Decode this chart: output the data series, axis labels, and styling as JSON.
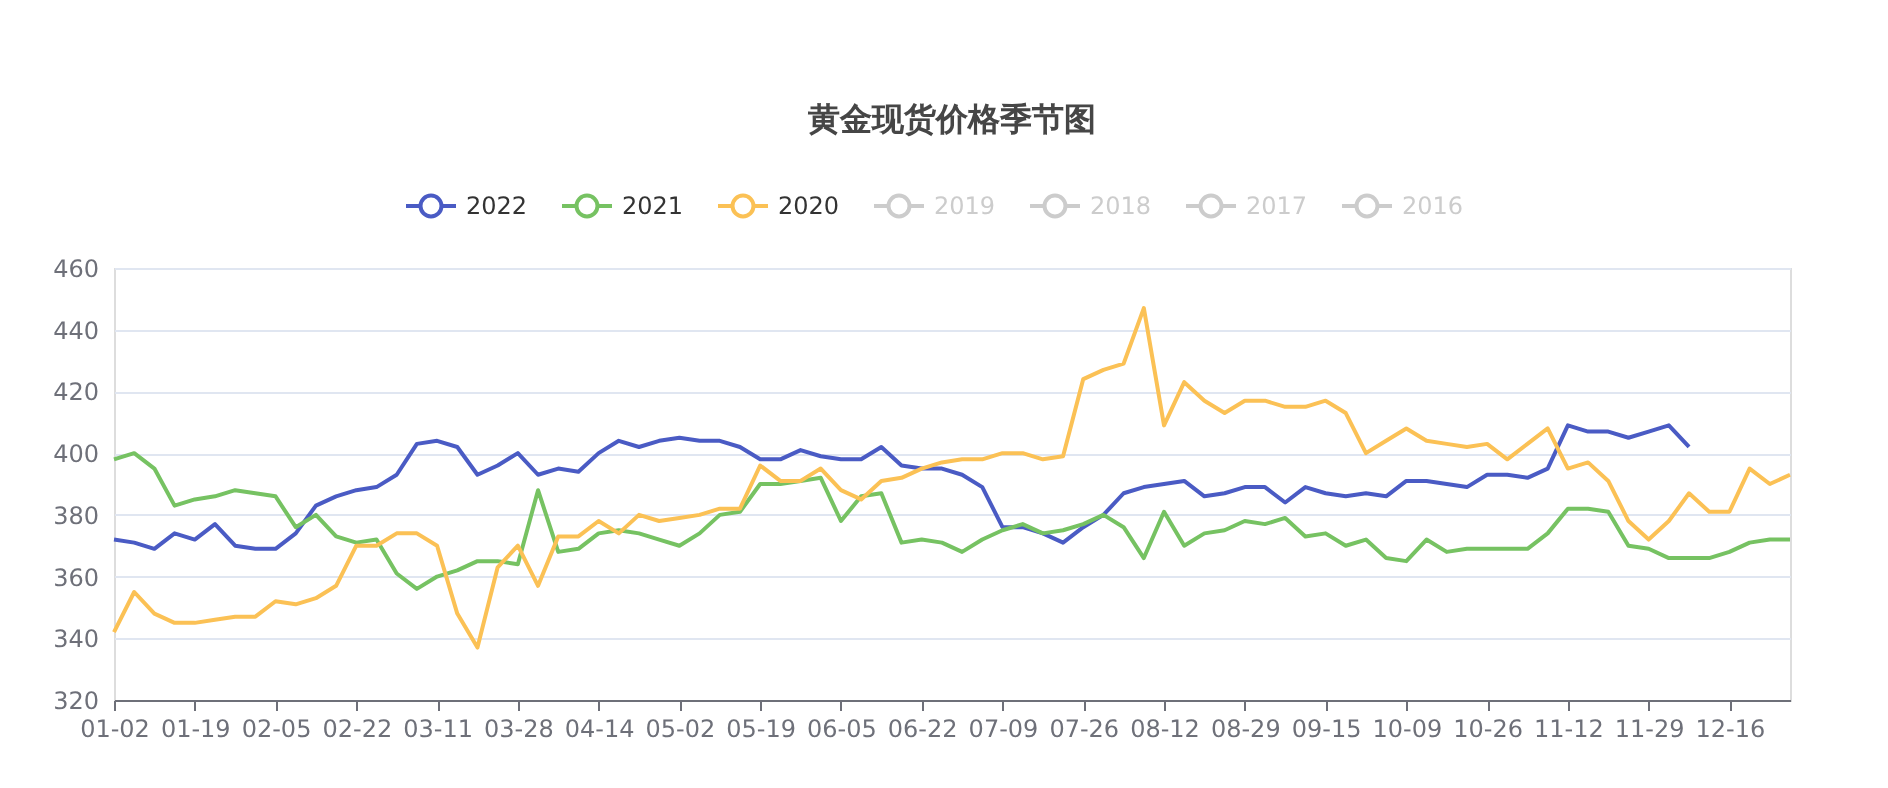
{
  "chart_data": {
    "type": "line",
    "title": "黄金现货价格季节图",
    "categories": [
      "01-02",
      null,
      null,
      null,
      "01-19",
      null,
      null,
      null,
      "02-05",
      null,
      null,
      null,
      "02-22",
      null,
      null,
      null,
      "03-11",
      null,
      null,
      null,
      "03-28",
      null,
      null,
      null,
      "04-14",
      null,
      null,
      null,
      "05-02",
      null,
      null,
      null,
      "05-19",
      null,
      null,
      null,
      "06-05",
      null,
      null,
      null,
      "06-22",
      null,
      null,
      null,
      "07-09",
      null,
      null,
      null,
      "07-26",
      null,
      null,
      null,
      "08-12",
      null,
      null,
      null,
      "08-29",
      null,
      null,
      null,
      "09-15",
      null,
      null,
      null,
      "10-09",
      null,
      null,
      null,
      "10-26",
      null,
      null,
      null,
      "11-12",
      null,
      null,
      null,
      "11-29",
      null,
      null,
      null,
      "12-16",
      null,
      null,
      null
    ],
    "series": [
      {
        "name": "2022",
        "color": "#4a5bc4",
        "values": [
          372,
          371,
          369,
          374,
          372,
          377,
          370,
          369,
          369,
          374,
          383,
          386,
          388,
          389,
          393,
          403,
          404,
          402,
          393,
          396,
          400,
          393,
          395,
          394,
          400,
          404,
          402,
          404,
          405,
          404,
          404,
          402,
          398,
          398,
          401,
          399,
          398,
          398,
          402,
          396,
          395,
          395,
          393,
          389,
          376,
          376,
          374,
          371,
          376,
          380,
          387,
          389,
          390,
          391,
          386,
          387,
          389,
          389,
          384,
          389,
          387,
          386,
          387,
          386,
          391,
          391,
          390,
          389,
          393,
          393,
          392,
          395,
          409,
          407,
          407,
          405,
          407,
          409,
          402,
          null,
          null,
          null,
          null,
          null
        ]
      },
      {
        "name": "2021",
        "color": "#76c262",
        "values": [
          398,
          400,
          395,
          383,
          385,
          386,
          388,
          387,
          386,
          376,
          380,
          373,
          371,
          372,
          361,
          356,
          360,
          362,
          365,
          365,
          364,
          388,
          368,
          369,
          374,
          375,
          374,
          372,
          370,
          374,
          380,
          381,
          390,
          390,
          391,
          392,
          378,
          386,
          387,
          371,
          372,
          371,
          368,
          372,
          375,
          377,
          374,
          375,
          377,
          380,
          376,
          366,
          381,
          370,
          374,
          375,
          378,
          377,
          379,
          373,
          374,
          370,
          372,
          366,
          365,
          372,
          368,
          369,
          369,
          369,
          369,
          374,
          382,
          382,
          381,
          370,
          369,
          366,
          366,
          366,
          368,
          371,
          372,
          372
        ]
      },
      {
        "name": "2020",
        "color": "#fbc155",
        "values": [
          342,
          355,
          348,
          345,
          345,
          346,
          347,
          347,
          352,
          351,
          353,
          357,
          370,
          370,
          374,
          374,
          370,
          348,
          337,
          363,
          370,
          357,
          373,
          373,
          378,
          374,
          380,
          378,
          379,
          380,
          382,
          382,
          396,
          391,
          391,
          395,
          388,
          385,
          391,
          392,
          395,
          397,
          398,
          398,
          400,
          400,
          398,
          399,
          424,
          427,
          429,
          447,
          409,
          423,
          417,
          413,
          417,
          417,
          415,
          415,
          417,
          413,
          400,
          404,
          408,
          404,
          403,
          402,
          403,
          398,
          403,
          408,
          395,
          397,
          391,
          378,
          372,
          378,
          387,
          381,
          381,
          395,
          390,
          393
        ]
      },
      {
        "name": "2019",
        "color": "#cccccc",
        "values": [
          null,
          null,
          null,
          null,
          null,
          null,
          null,
          null,
          null,
          null,
          null,
          null,
          null,
          null,
          null,
          null,
          null,
          null,
          null,
          null,
          null,
          null,
          null,
          null,
          null,
          null,
          null,
          null,
          null,
          null,
          null,
          null,
          null,
          null,
          null,
          null,
          null,
          null,
          null,
          null,
          null,
          null,
          null,
          null,
          null,
          null,
          null,
          null,
          null,
          null,
          null,
          null,
          null,
          null,
          null,
          null,
          null,
          null,
          null,
          null,
          null,
          null,
          null,
          null,
          null,
          null,
          null,
          null,
          null,
          null,
          null,
          null,
          null,
          null,
          null,
          null,
          null,
          null,
          null,
          null,
          null,
          null,
          null,
          null
        ]
      },
      {
        "name": "2018",
        "color": "#cccccc",
        "values": [
          null,
          null,
          null,
          null,
          null,
          null,
          null,
          null,
          null,
          null,
          null,
          null,
          null,
          null,
          null,
          null,
          null,
          null,
          null,
          null,
          null,
          null,
          null,
          null,
          null,
          null,
          null,
          null,
          null,
          null,
          null,
          null,
          null,
          null,
          null,
          null,
          null,
          null,
          null,
          null,
          null,
          null,
          null,
          null,
          null,
          null,
          null,
          null,
          null,
          null,
          null,
          null,
          null,
          null,
          null,
          null,
          null,
          null,
          null,
          null,
          null,
          null,
          null,
          null,
          null,
          null,
          null,
          null,
          null,
          null,
          null,
          null,
          null,
          null,
          null,
          null,
          null,
          null,
          null,
          null,
          null,
          null,
          null,
          null
        ]
      },
      {
        "name": "2017",
        "color": "#cccccc",
        "values": [
          null,
          null,
          null,
          null,
          null,
          null,
          null,
          null,
          null,
          null,
          null,
          null,
          null,
          null,
          null,
          null,
          null,
          null,
          null,
          null,
          null,
          null,
          null,
          null,
          null,
          null,
          null,
          null,
          null,
          null,
          null,
          null,
          null,
          null,
          null,
          null,
          null,
          null,
          null,
          null,
          null,
          null,
          null,
          null,
          null,
          null,
          null,
          null,
          null,
          null,
          null,
          null,
          null,
          null,
          null,
          null,
          null,
          null,
          null,
          null,
          null,
          null,
          null,
          null,
          null,
          null,
          null,
          null,
          null,
          null,
          null,
          null,
          null,
          null,
          null,
          null,
          null,
          null,
          null,
          null,
          null,
          null,
          null,
          null
        ]
      },
      {
        "name": "2016",
        "color": "#cccccc",
        "values": [
          null,
          null,
          null,
          null,
          null,
          null,
          null,
          null,
          null,
          null,
          null,
          null,
          null,
          null,
          null,
          null,
          null,
          null,
          null,
          null,
          null,
          null,
          null,
          null,
          null,
          null,
          null,
          null,
          null,
          null,
          null,
          null,
          null,
          null,
          null,
          null,
          null,
          null,
          null,
          null,
          null,
          null,
          null,
          null,
          null,
          null,
          null,
          null,
          null,
          null,
          null,
          null,
          null,
          null,
          null,
          null,
          null,
          null,
          null,
          null,
          null,
          null,
          null,
          null,
          null,
          null,
          null,
          null,
          null,
          null,
          null,
          null,
          null,
          null,
          null,
          null,
          null,
          null,
          null,
          null,
          null,
          null,
          null,
          null
        ]
      }
    ],
    "ylim": [
      320,
      460
    ],
    "yticks": [
      320,
      340,
      360,
      380,
      400,
      420,
      440,
      460
    ],
    "grid": "y",
    "legend": "top",
    "marker": "none",
    "line_style": "solid"
  }
}
